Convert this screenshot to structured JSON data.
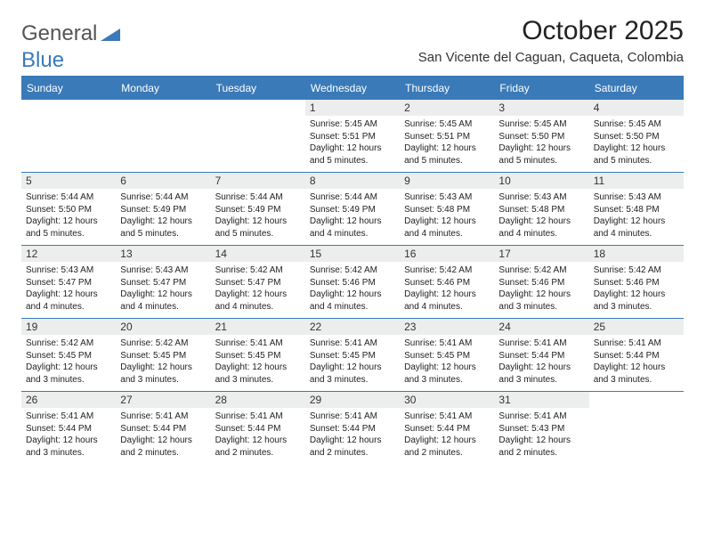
{
  "logo": {
    "word1": "General",
    "word2": "Blue"
  },
  "title": "October 2025",
  "subtitle": "San Vicente del Caguan, Caqueta, Colombia",
  "colors": {
    "accent": "#3a7ab8",
    "header_bg": "#3a7ab8",
    "header_fg": "#ffffff",
    "daynum_bg": "#eceded",
    "text": "#222222",
    "page_bg": "#ffffff"
  },
  "day_headers": [
    "Sunday",
    "Monday",
    "Tuesday",
    "Wednesday",
    "Thursday",
    "Friday",
    "Saturday"
  ],
  "weeks": [
    [
      {
        "n": "",
        "sr": "",
        "ss": "",
        "dl": "",
        "empty": true
      },
      {
        "n": "",
        "sr": "",
        "ss": "",
        "dl": "",
        "empty": true
      },
      {
        "n": "",
        "sr": "",
        "ss": "",
        "dl": "",
        "empty": true
      },
      {
        "n": "1",
        "sr": "5:45 AM",
        "ss": "5:51 PM",
        "dl": "12 hours and 5 minutes."
      },
      {
        "n": "2",
        "sr": "5:45 AM",
        "ss": "5:51 PM",
        "dl": "12 hours and 5 minutes."
      },
      {
        "n": "3",
        "sr": "5:45 AM",
        "ss": "5:50 PM",
        "dl": "12 hours and 5 minutes."
      },
      {
        "n": "4",
        "sr": "5:45 AM",
        "ss": "5:50 PM",
        "dl": "12 hours and 5 minutes."
      }
    ],
    [
      {
        "n": "5",
        "sr": "5:44 AM",
        "ss": "5:50 PM",
        "dl": "12 hours and 5 minutes."
      },
      {
        "n": "6",
        "sr": "5:44 AM",
        "ss": "5:49 PM",
        "dl": "12 hours and 5 minutes."
      },
      {
        "n": "7",
        "sr": "5:44 AM",
        "ss": "5:49 PM",
        "dl": "12 hours and 5 minutes."
      },
      {
        "n": "8",
        "sr": "5:44 AM",
        "ss": "5:49 PM",
        "dl": "12 hours and 4 minutes."
      },
      {
        "n": "9",
        "sr": "5:43 AM",
        "ss": "5:48 PM",
        "dl": "12 hours and 4 minutes."
      },
      {
        "n": "10",
        "sr": "5:43 AM",
        "ss": "5:48 PM",
        "dl": "12 hours and 4 minutes."
      },
      {
        "n": "11",
        "sr": "5:43 AM",
        "ss": "5:48 PM",
        "dl": "12 hours and 4 minutes."
      }
    ],
    [
      {
        "n": "12",
        "sr": "5:43 AM",
        "ss": "5:47 PM",
        "dl": "12 hours and 4 minutes."
      },
      {
        "n": "13",
        "sr": "5:43 AM",
        "ss": "5:47 PM",
        "dl": "12 hours and 4 minutes."
      },
      {
        "n": "14",
        "sr": "5:42 AM",
        "ss": "5:47 PM",
        "dl": "12 hours and 4 minutes."
      },
      {
        "n": "15",
        "sr": "5:42 AM",
        "ss": "5:46 PM",
        "dl": "12 hours and 4 minutes."
      },
      {
        "n": "16",
        "sr": "5:42 AM",
        "ss": "5:46 PM",
        "dl": "12 hours and 4 minutes."
      },
      {
        "n": "17",
        "sr": "5:42 AM",
        "ss": "5:46 PM",
        "dl": "12 hours and 3 minutes."
      },
      {
        "n": "18",
        "sr": "5:42 AM",
        "ss": "5:46 PM",
        "dl": "12 hours and 3 minutes."
      }
    ],
    [
      {
        "n": "19",
        "sr": "5:42 AM",
        "ss": "5:45 PM",
        "dl": "12 hours and 3 minutes."
      },
      {
        "n": "20",
        "sr": "5:42 AM",
        "ss": "5:45 PM",
        "dl": "12 hours and 3 minutes."
      },
      {
        "n": "21",
        "sr": "5:41 AM",
        "ss": "5:45 PM",
        "dl": "12 hours and 3 minutes."
      },
      {
        "n": "22",
        "sr": "5:41 AM",
        "ss": "5:45 PM",
        "dl": "12 hours and 3 minutes."
      },
      {
        "n": "23",
        "sr": "5:41 AM",
        "ss": "5:45 PM",
        "dl": "12 hours and 3 minutes."
      },
      {
        "n": "24",
        "sr": "5:41 AM",
        "ss": "5:44 PM",
        "dl": "12 hours and 3 minutes."
      },
      {
        "n": "25",
        "sr": "5:41 AM",
        "ss": "5:44 PM",
        "dl": "12 hours and 3 minutes."
      }
    ],
    [
      {
        "n": "26",
        "sr": "5:41 AM",
        "ss": "5:44 PM",
        "dl": "12 hours and 3 minutes."
      },
      {
        "n": "27",
        "sr": "5:41 AM",
        "ss": "5:44 PM",
        "dl": "12 hours and 2 minutes."
      },
      {
        "n": "28",
        "sr": "5:41 AM",
        "ss": "5:44 PM",
        "dl": "12 hours and 2 minutes."
      },
      {
        "n": "29",
        "sr": "5:41 AM",
        "ss": "5:44 PM",
        "dl": "12 hours and 2 minutes."
      },
      {
        "n": "30",
        "sr": "5:41 AM",
        "ss": "5:44 PM",
        "dl": "12 hours and 2 minutes."
      },
      {
        "n": "31",
        "sr": "5:41 AM",
        "ss": "5:43 PM",
        "dl": "12 hours and 2 minutes."
      },
      {
        "n": "",
        "sr": "",
        "ss": "",
        "dl": "",
        "empty": true
      }
    ]
  ],
  "labels": {
    "sunrise": "Sunrise:",
    "sunset": "Sunset:",
    "daylight": "Daylight:"
  }
}
